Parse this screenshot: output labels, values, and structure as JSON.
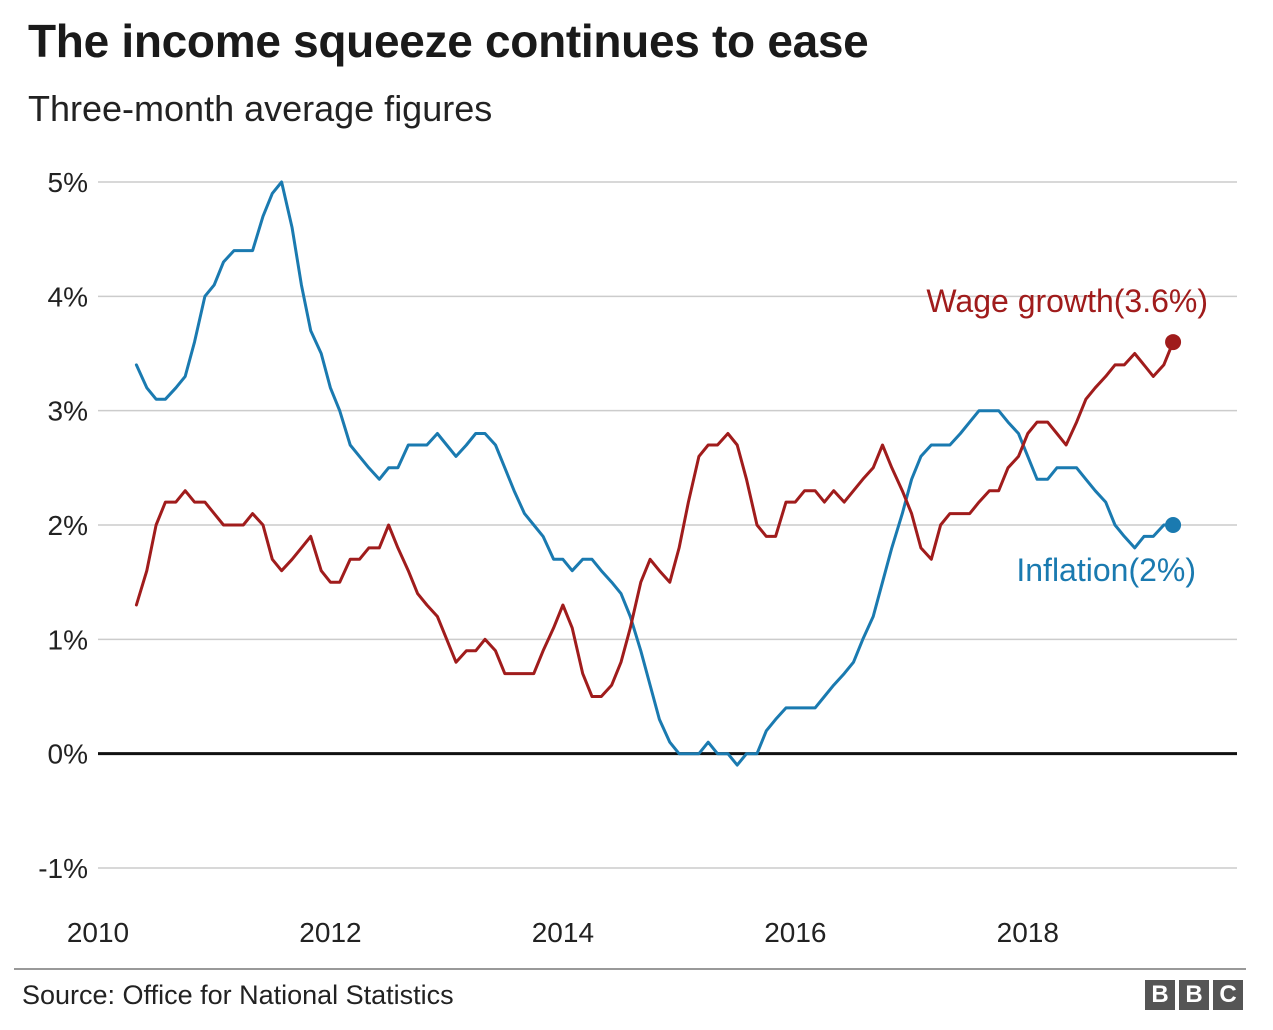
{
  "title": "The income squeeze continues to ease",
  "subtitle": "Three-month average figures",
  "source": "Source: Office for National Statistics",
  "logo": [
    "B",
    "B",
    "C"
  ],
  "chart_data": {
    "type": "line",
    "title": "The income squeeze continues to ease",
    "subtitle": "Three-month average figures",
    "xlabel": "",
    "ylabel": "",
    "xlim": [
      2010,
      2019.8
    ],
    "ylim": [
      -1,
      5
    ],
    "x_ticks": [
      2010,
      2012,
      2014,
      2016,
      2018
    ],
    "x_tick_labels": [
      "2010",
      "2012",
      "2014",
      "2016",
      "2018"
    ],
    "y_ticks": [
      -1,
      0,
      1,
      2,
      3,
      4,
      5
    ],
    "y_tick_labels": [
      "-1%",
      "0%",
      "1%",
      "2%",
      "3%",
      "4%",
      "5%"
    ],
    "grid": true,
    "series": [
      {
        "name": "Inflation",
        "label": "Inflation(2%)",
        "color": "#1a7ab0",
        "end_value": 2.0,
        "x": [
          2010.33,
          2010.42,
          2010.5,
          2010.58,
          2010.67,
          2010.75,
          2010.83,
          2010.92,
          2011.0,
          2011.08,
          2011.17,
          2011.25,
          2011.33,
          2011.42,
          2011.5,
          2011.58,
          2011.67,
          2011.75,
          2011.83,
          2011.92,
          2012.0,
          2012.08,
          2012.17,
          2012.25,
          2012.33,
          2012.42,
          2012.5,
          2012.58,
          2012.67,
          2012.75,
          2012.83,
          2012.92,
          2013.0,
          2013.08,
          2013.17,
          2013.25,
          2013.33,
          2013.42,
          2013.5,
          2013.58,
          2013.67,
          2013.75,
          2013.83,
          2013.92,
          2014.0,
          2014.08,
          2014.17,
          2014.25,
          2014.33,
          2014.42,
          2014.5,
          2014.58,
          2014.67,
          2014.75,
          2014.83,
          2014.92,
          2015.0,
          2015.08,
          2015.17,
          2015.25,
          2015.33,
          2015.42,
          2015.5,
          2015.58,
          2015.67,
          2015.75,
          2015.83,
          2015.92,
          2016.0,
          2016.08,
          2016.17,
          2016.25,
          2016.33,
          2016.42,
          2016.5,
          2016.58,
          2016.67,
          2016.75,
          2016.83,
          2016.92,
          2017.0,
          2017.08,
          2017.17,
          2017.25,
          2017.33,
          2017.42,
          2017.5,
          2017.58,
          2017.67,
          2017.75,
          2017.83,
          2017.92,
          2018.0,
          2018.08,
          2018.17,
          2018.25,
          2018.33,
          2018.42,
          2018.5,
          2018.58,
          2018.67,
          2018.75,
          2018.83,
          2018.92,
          2019.0,
          2019.08,
          2019.17,
          2019.25
        ],
        "values": [
          3.4,
          3.2,
          3.1,
          3.1,
          3.2,
          3.3,
          3.6,
          4.0,
          4.1,
          4.3,
          4.4,
          4.4,
          4.4,
          4.7,
          4.9,
          5.0,
          4.6,
          4.1,
          3.7,
          3.5,
          3.2,
          3.0,
          2.7,
          2.6,
          2.5,
          2.4,
          2.5,
          2.5,
          2.7,
          2.7,
          2.7,
          2.8,
          2.7,
          2.6,
          2.7,
          2.8,
          2.8,
          2.7,
          2.5,
          2.3,
          2.1,
          2.0,
          1.9,
          1.7,
          1.7,
          1.6,
          1.7,
          1.7,
          1.6,
          1.5,
          1.4,
          1.2,
          0.9,
          0.6,
          0.3,
          0.1,
          0.0,
          0.0,
          0.0,
          0.1,
          0.0,
          0.0,
          -0.1,
          0.0,
          0.0,
          0.2,
          0.3,
          0.4,
          0.4,
          0.4,
          0.4,
          0.5,
          0.6,
          0.7,
          0.8,
          1.0,
          1.2,
          1.5,
          1.8,
          2.1,
          2.4,
          2.6,
          2.7,
          2.7,
          2.7,
          2.8,
          2.9,
          3.0,
          3.0,
          3.0,
          2.9,
          2.8,
          2.6,
          2.4,
          2.4,
          2.5,
          2.5,
          2.5,
          2.4,
          2.3,
          2.2,
          2.0,
          1.9,
          1.8,
          1.9,
          1.9,
          2.0,
          2.0
        ]
      },
      {
        "name": "Wage growth",
        "label": "Wage growth(3.6%)",
        "color": "#a01c1c",
        "end_value": 3.6,
        "x": [
          2010.33,
          2010.42,
          2010.5,
          2010.58,
          2010.67,
          2010.75,
          2010.83,
          2010.92,
          2011.0,
          2011.08,
          2011.17,
          2011.25,
          2011.33,
          2011.42,
          2011.5,
          2011.58,
          2011.67,
          2011.75,
          2011.83,
          2011.92,
          2012.0,
          2012.08,
          2012.17,
          2012.25,
          2012.33,
          2012.42,
          2012.5,
          2012.58,
          2012.67,
          2012.75,
          2012.83,
          2012.92,
          2013.0,
          2013.08,
          2013.17,
          2013.25,
          2013.33,
          2013.42,
          2013.5,
          2013.58,
          2013.67,
          2013.75,
          2013.83,
          2013.92,
          2014.0,
          2014.08,
          2014.17,
          2014.25,
          2014.33,
          2014.42,
          2014.5,
          2014.58,
          2014.67,
          2014.75,
          2014.83,
          2014.92,
          2015.0,
          2015.08,
          2015.17,
          2015.25,
          2015.33,
          2015.42,
          2015.5,
          2015.58,
          2015.67,
          2015.75,
          2015.83,
          2015.92,
          2016.0,
          2016.08,
          2016.17,
          2016.25,
          2016.33,
          2016.42,
          2016.5,
          2016.58,
          2016.67,
          2016.75,
          2016.83,
          2016.92,
          2017.0,
          2017.08,
          2017.17,
          2017.25,
          2017.33,
          2017.42,
          2017.5,
          2017.58,
          2017.67,
          2017.75,
          2017.83,
          2017.92,
          2018.0,
          2018.08,
          2018.17,
          2018.25,
          2018.33,
          2018.42,
          2018.5,
          2018.58,
          2018.67,
          2018.75,
          2018.83,
          2018.92,
          2019.0,
          2019.08,
          2019.17,
          2019.25
        ],
        "values": [
          1.3,
          1.6,
          2.0,
          2.2,
          2.2,
          2.3,
          2.2,
          2.2,
          2.1,
          2.0,
          2.0,
          2.0,
          2.1,
          2.0,
          1.7,
          1.6,
          1.7,
          1.8,
          1.9,
          1.6,
          1.5,
          1.5,
          1.7,
          1.7,
          1.8,
          1.8,
          2.0,
          1.8,
          1.6,
          1.4,
          1.3,
          1.2,
          1.0,
          0.8,
          0.9,
          0.9,
          1.0,
          0.9,
          0.7,
          0.7,
          0.7,
          0.7,
          0.9,
          1.1,
          1.3,
          1.1,
          0.7,
          0.5,
          0.5,
          0.6,
          0.8,
          1.1,
          1.5,
          1.7,
          1.6,
          1.5,
          1.8,
          2.2,
          2.6,
          2.7,
          2.7,
          2.8,
          2.7,
          2.4,
          2.0,
          1.9,
          1.9,
          2.2,
          2.2,
          2.3,
          2.3,
          2.2,
          2.3,
          2.2,
          2.3,
          2.4,
          2.5,
          2.7,
          2.5,
          2.3,
          2.1,
          1.8,
          1.7,
          2.0,
          2.1,
          2.1,
          2.1,
          2.2,
          2.3,
          2.3,
          2.5,
          2.6,
          2.8,
          2.9,
          2.9,
          2.8,
          2.7,
          2.9,
          3.1,
          3.2,
          3.3,
          3.4,
          3.4,
          3.5,
          3.4,
          3.3,
          3.4,
          3.6
        ]
      }
    ]
  }
}
